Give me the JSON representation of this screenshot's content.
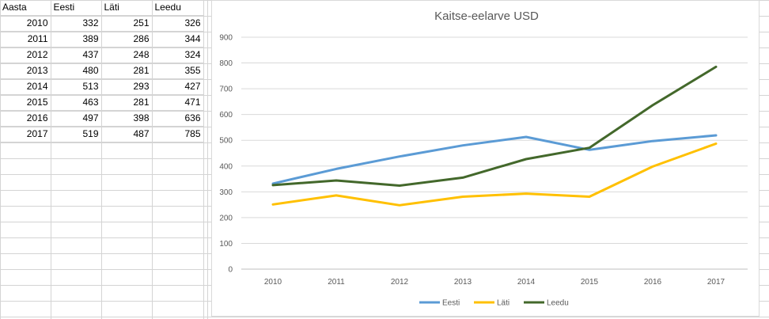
{
  "table": {
    "headers": [
      "Aasta",
      "Eesti",
      "Läti",
      "Leedu"
    ],
    "rows": [
      [
        "2010",
        "332",
        "251",
        "326"
      ],
      [
        "2011",
        "389",
        "286",
        "344"
      ],
      [
        "2012",
        "437",
        "248",
        "324"
      ],
      [
        "2013",
        "480",
        "281",
        "355"
      ],
      [
        "2014",
        "513",
        "293",
        "427"
      ],
      [
        "2015",
        "463",
        "281",
        "471"
      ],
      [
        "2016",
        "497",
        "398",
        "636"
      ],
      [
        "2017",
        "519",
        "487",
        "785"
      ]
    ]
  },
  "chart_data": {
    "type": "line",
    "title": "Kaitse-eelarve USD",
    "xlabel": "",
    "ylabel": "",
    "categories": [
      "2010",
      "2011",
      "2012",
      "2013",
      "2014",
      "2015",
      "2016",
      "2017"
    ],
    "ylim": [
      0,
      900
    ],
    "yticks": [
      "0",
      "100",
      "200",
      "300",
      "400",
      "500",
      "600",
      "700",
      "800",
      "900"
    ],
    "grid": true,
    "legend": "bottom",
    "series": [
      {
        "name": "Eesti",
        "color": "#5b9bd5",
        "values": [
          332,
          389,
          437,
          480,
          513,
          463,
          497,
          519
        ]
      },
      {
        "name": "Läti",
        "color": "#ffc000",
        "values": [
          251,
          286,
          248,
          281,
          293,
          281,
          398,
          487
        ]
      },
      {
        "name": "Leedu",
        "color": "#43682b",
        "values": [
          326,
          344,
          324,
          355,
          427,
          471,
          636,
          785
        ]
      }
    ]
  }
}
